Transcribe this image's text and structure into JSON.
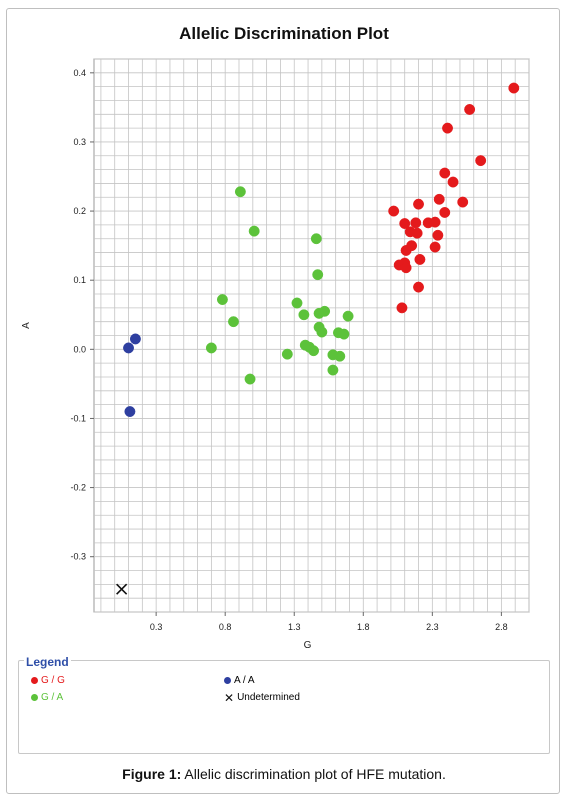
{
  "chart_data": {
    "type": "scatter",
    "title": "Allelic Discrimination Plot",
    "xlabel": "G",
    "ylabel": "A",
    "xlim": [
      -0.15,
      3.0
    ],
    "ylim": [
      -0.38,
      0.42
    ],
    "x_ticks": [
      "0.3",
      "0.8",
      "1.3",
      "1.8",
      "2.3",
      "2.8"
    ],
    "y_ticks": [
      "-0.3",
      "-0.2",
      "-0.1",
      "0.0",
      "0.1",
      "0.2",
      "0.3",
      "0.4"
    ],
    "grid": true,
    "legend_position": "bottom",
    "series": [
      {
        "name": "G / G",
        "color": "#e41a1c",
        "marker": "dot",
        "points": [
          [
            2.89,
            0.378
          ],
          [
            2.57,
            0.347
          ],
          [
            2.41,
            0.32
          ],
          [
            2.65,
            0.273
          ],
          [
            2.39,
            0.255
          ],
          [
            2.45,
            0.242
          ],
          [
            2.35,
            0.217
          ],
          [
            2.52,
            0.213
          ],
          [
            2.39,
            0.198
          ],
          [
            2.02,
            0.2
          ],
          [
            2.2,
            0.21
          ],
          [
            2.27,
            0.183
          ],
          [
            2.32,
            0.184
          ],
          [
            2.1,
            0.182
          ],
          [
            2.18,
            0.183
          ],
          [
            2.14,
            0.17
          ],
          [
            2.19,
            0.168
          ],
          [
            2.34,
            0.165
          ],
          [
            2.15,
            0.15
          ],
          [
            2.32,
            0.148
          ],
          [
            2.11,
            0.143
          ],
          [
            2.21,
            0.13
          ],
          [
            2.06,
            0.122
          ],
          [
            2.1,
            0.125
          ],
          [
            2.11,
            0.118
          ],
          [
            2.2,
            0.09
          ],
          [
            2.08,
            0.06
          ]
        ]
      },
      {
        "name": "G / A",
        "color": "#5cc23a",
        "marker": "dot",
        "points": [
          [
            0.91,
            0.228
          ],
          [
            1.01,
            0.171
          ],
          [
            1.46,
            0.16
          ],
          [
            1.47,
            0.108
          ],
          [
            0.78,
            0.072
          ],
          [
            1.32,
            0.067
          ],
          [
            1.52,
            0.055
          ],
          [
            1.48,
            0.052
          ],
          [
            1.37,
            0.05
          ],
          [
            1.69,
            0.048
          ],
          [
            0.86,
            0.04
          ],
          [
            1.48,
            0.032
          ],
          [
            1.5,
            0.025
          ],
          [
            1.62,
            0.024
          ],
          [
            1.66,
            0.022
          ],
          [
            1.38,
            0.006
          ],
          [
            1.41,
            0.003
          ],
          [
            1.44,
            -0.002
          ],
          [
            0.7,
            0.002
          ],
          [
            1.25,
            -0.007
          ],
          [
            1.58,
            -0.008
          ],
          [
            1.63,
            -0.01
          ],
          [
            1.58,
            -0.03
          ],
          [
            0.98,
            -0.043
          ]
        ]
      },
      {
        "name": "A / A",
        "color": "#2e3fa0",
        "marker": "dot",
        "points": [
          [
            0.15,
            0.015
          ],
          [
            0.1,
            0.002
          ],
          [
            0.11,
            -0.09
          ]
        ]
      },
      {
        "name": "Undetermined",
        "color": "#111111",
        "marker": "x",
        "points": [
          [
            0.05,
            -0.347
          ]
        ]
      }
    ]
  },
  "legend": {
    "title": "Legend",
    "items": [
      {
        "label": "G / G",
        "color": "#e41a1c"
      },
      {
        "label": "G / A",
        "color": "#5cc23a"
      },
      {
        "label": "A / A",
        "color": "#2e3fa0"
      },
      {
        "label": "Undetermined",
        "color": "#111111"
      }
    ]
  },
  "caption": {
    "label": "Figure 1:",
    "text": " Allelic discrimination plot of HFE mutation."
  }
}
